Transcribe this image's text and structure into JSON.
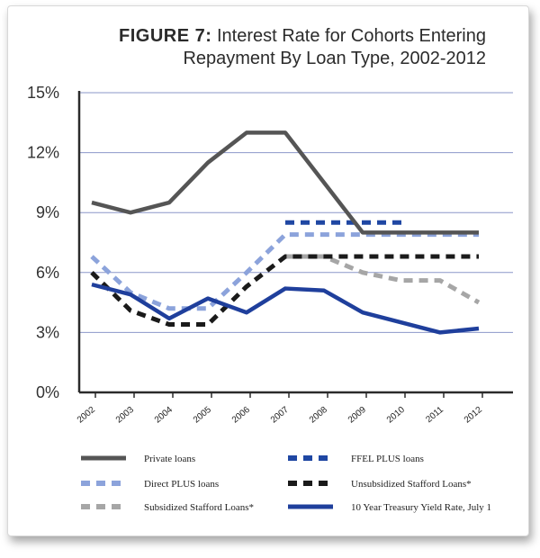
{
  "title": {
    "prefix": "FIGURE 7:",
    "line1": "Interest Rate for Cohorts Entering",
    "line2": "Repayment By Loan Type, 2002-2012"
  },
  "chart_data": {
    "type": "line",
    "x": [
      "2002",
      "2003",
      "2004",
      "2005",
      "2006",
      "2007",
      "2008",
      "2009",
      "2010",
      "2011",
      "2012"
    ],
    "ylim": [
      0,
      15
    ],
    "yticks": [
      0,
      3,
      6,
      9,
      12,
      15
    ],
    "ytick_labels": [
      "0%",
      "3%",
      "6%",
      "9%",
      "12%",
      "15%"
    ],
    "grid": true,
    "legend_position": "bottom",
    "series": [
      {
        "name": "Private loans",
        "color": "#555555",
        "style": "solid",
        "values": [
          9.5,
          9.0,
          9.5,
          11.5,
          13.0,
          13.0,
          10.5,
          8.0,
          8.0,
          8.0,
          8.0
        ]
      },
      {
        "name": "FFEL PLUS loans",
        "color": "#1f47a3",
        "style": "dashed",
        "values": [
          null,
          null,
          null,
          null,
          null,
          8.5,
          8.5,
          8.5,
          8.5,
          null,
          null
        ]
      },
      {
        "name": "Direct PLUS loans",
        "color": "#8ca3db",
        "style": "dashed",
        "values": [
          6.8,
          5.0,
          4.2,
          4.2,
          6.0,
          7.9,
          7.9,
          7.9,
          7.9,
          7.9,
          7.9
        ]
      },
      {
        "name": "Unsubsidized Stafford Loans*",
        "color": "#1a1a1a",
        "style": "dashed",
        "values": [
          6.0,
          4.1,
          3.4,
          3.4,
          5.3,
          6.8,
          6.8,
          6.8,
          6.8,
          6.8,
          6.8
        ]
      },
      {
        "name": "Subsidized Stafford Loans*",
        "color": "#a6a6a6",
        "style": "dashed",
        "values": [
          null,
          null,
          null,
          null,
          null,
          6.8,
          6.8,
          6.0,
          5.6,
          5.6,
          4.5
        ]
      },
      {
        "name": "10 Year Treasury Yield Rate, July 1",
        "color": "#1f3f9c",
        "style": "solid",
        "values": [
          5.4,
          4.9,
          3.7,
          4.7,
          4.0,
          5.2,
          5.1,
          4.0,
          3.5,
          3.0,
          3.2
        ]
      }
    ]
  }
}
